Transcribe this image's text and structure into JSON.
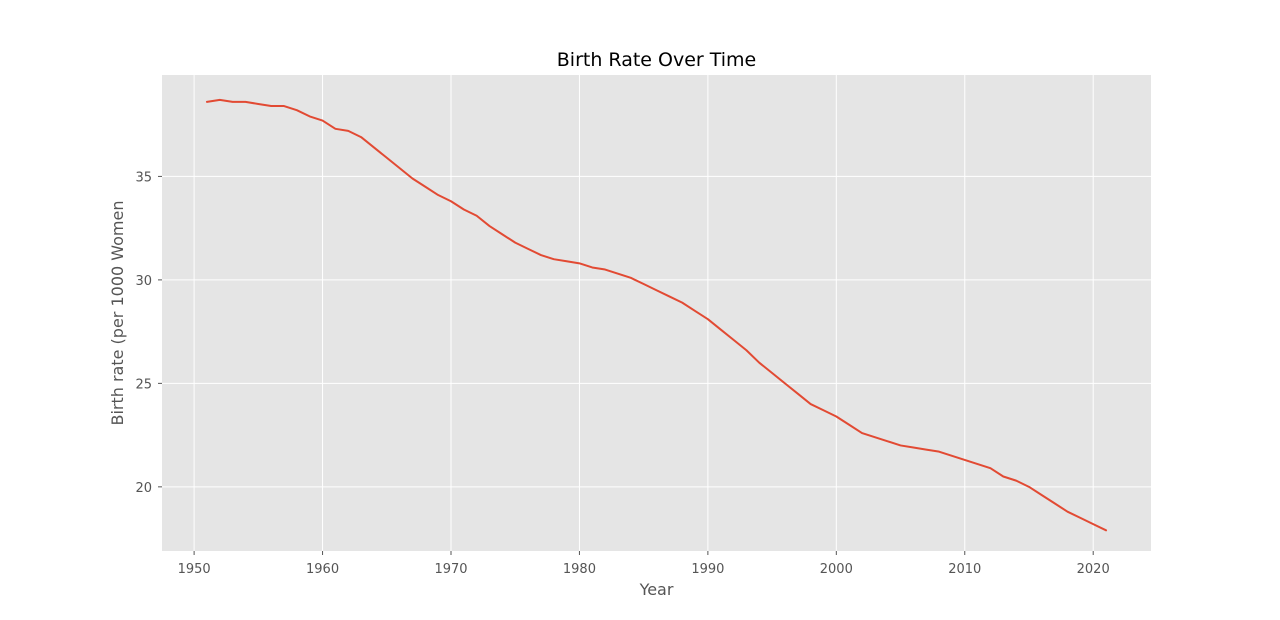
{
  "chart_data": {
    "type": "line",
    "title": "Birth Rate Over Time",
    "xlabel": "Year",
    "ylabel": "Birth rate (per 1000 Women",
    "xlim": [
      1947.5,
      2024.5
    ],
    "ylim": [
      16.9,
      39.9
    ],
    "xticks": [
      1950,
      1960,
      1970,
      1980,
      1990,
      2000,
      2010,
      2020
    ],
    "yticks": [
      20,
      25,
      30,
      35
    ],
    "grid": true,
    "legend": "none",
    "colors": {
      "plot_background": "#e5e5e5",
      "grid": "#ffffff",
      "line": "#e24a33",
      "tick_text": "#555555",
      "title_text": "#000000"
    },
    "series": [
      {
        "x": [
          1951,
          1952,
          1953,
          1954,
          1955,
          1956,
          1957,
          1958,
          1959,
          1960,
          1961,
          1962,
          1963,
          1964,
          1965,
          1966,
          1967,
          1968,
          1969,
          1970,
          1971,
          1972,
          1973,
          1974,
          1975,
          1976,
          1977,
          1978,
          1979,
          1980,
          1981,
          1982,
          1983,
          1984,
          1985,
          1986,
          1987,
          1988,
          1989,
          1990,
          1991,
          1992,
          1993,
          1994,
          1995,
          1996,
          1997,
          1998,
          1999,
          2000,
          2001,
          2002,
          2003,
          2004,
          2005,
          2006,
          2007,
          2008,
          2009,
          2010,
          2011,
          2012,
          2013,
          2014,
          2015,
          2016,
          2017,
          2018,
          2019,
          2020,
          2021
        ],
        "values": [
          38.6,
          38.7,
          38.6,
          38.6,
          38.5,
          38.4,
          38.4,
          38.2,
          37.9,
          37.7,
          37.3,
          37.2,
          36.9,
          36.4,
          35.9,
          35.4,
          34.9,
          34.5,
          34.1,
          33.8,
          33.4,
          33.1,
          32.6,
          32.2,
          31.8,
          31.5,
          31.2,
          31.0,
          30.9,
          30.8,
          30.6,
          30.5,
          30.3,
          30.1,
          29.8,
          29.5,
          29.2,
          28.9,
          28.5,
          28.1,
          27.6,
          27.1,
          26.6,
          26.0,
          25.5,
          25.0,
          24.5,
          24.0,
          23.7,
          23.4,
          23.0,
          22.6,
          22.4,
          22.2,
          22.0,
          21.9,
          21.8,
          21.7,
          21.5,
          21.3,
          21.1,
          20.9,
          20.5,
          20.3,
          20.0,
          19.6,
          19.2,
          18.8,
          18.5,
          18.2,
          17.9
        ]
      }
    ]
  }
}
